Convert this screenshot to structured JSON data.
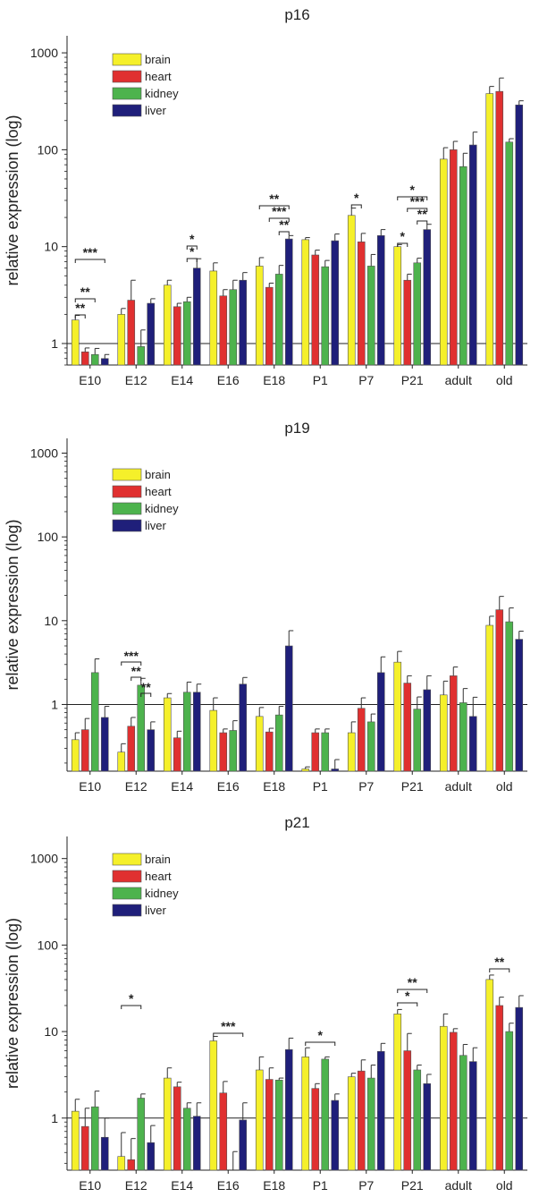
{
  "chart_data": [
    {
      "type": "bar",
      "title": "p16",
      "ylabel": "relative expression (log)",
      "yscale": "log",
      "ylim": [
        0.6,
        1500
      ],
      "yticks": [
        1,
        10,
        100,
        1000
      ],
      "legend_position": "top-left",
      "categories": [
        "E10",
        "E12",
        "E14",
        "E16",
        "E18",
        "P1",
        "P7",
        "P21",
        "adult",
        "old"
      ],
      "series": [
        {
          "name": "brain",
          "color": "#f5f02a",
          "values": [
            1.75,
            2.0,
            4.0,
            5.6,
            6.3,
            11.8,
            21,
            10,
            80,
            380
          ],
          "errors": [
            0.2,
            0.3,
            0.5,
            1.2,
            1.4,
            0.6,
            4,
            0.5,
            25,
            70
          ]
        },
        {
          "name": "heart",
          "color": "#e03030",
          "values": [
            0.82,
            2.8,
            2.4,
            3.1,
            3.8,
            8.2,
            11.2,
            4.5,
            100,
            400
          ],
          "errors": [
            0.08,
            1.7,
            0.2,
            0.5,
            0.4,
            1.0,
            2.5,
            0.7,
            22,
            150
          ]
        },
        {
          "name": "kidney",
          "color": "#4db34d",
          "values": [
            0.77,
            0.93,
            2.7,
            3.6,
            5.2,
            6.2,
            6.3,
            6.8,
            67,
            120
          ],
          "errors": [
            0.12,
            0.45,
            0.3,
            0.9,
            1.2,
            1.0,
            2.0,
            0.8,
            25,
            10
          ]
        },
        {
          "name": "liver",
          "color": "#1f1f7a",
          "values": [
            0.7,
            2.6,
            6.0,
            4.5,
            12,
            11.5,
            13,
            15,
            112,
            290
          ],
          "errors": [
            0.07,
            0.3,
            1.5,
            0.9,
            1.0,
            2.0,
            2.0,
            2.0,
            40,
            30
          ]
        }
      ],
      "annotations": [
        {
          "category": "E10",
          "text": "***"
        },
        {
          "category": "E10",
          "text": "**"
        },
        {
          "category": "E10",
          "text": "**"
        },
        {
          "category": "E14",
          "text": "*"
        },
        {
          "category": "E14",
          "text": "*"
        },
        {
          "category": "E18",
          "text": "**"
        },
        {
          "category": "E18",
          "text": "***"
        },
        {
          "category": "E18",
          "text": "**"
        },
        {
          "category": "P7",
          "text": "*"
        },
        {
          "category": "P21",
          "text": "*"
        },
        {
          "category": "P21",
          "text": "***"
        },
        {
          "category": "P21",
          "text": "**"
        },
        {
          "category": "P21",
          "text": "*"
        }
      ]
    },
    {
      "type": "bar",
      "title": "p19",
      "ylabel": "relative expression (log)",
      "yscale": "log",
      "ylim": [
        0.16,
        1500
      ],
      "yticks": [
        1,
        10,
        100,
        1000
      ],
      "legend_position": "top-left",
      "categories": [
        "E10",
        "E12",
        "E14",
        "E16",
        "E18",
        "P1",
        "P7",
        "P21",
        "adult",
        "old"
      ],
      "series": [
        {
          "name": "brain",
          "color": "#f5f02a",
          "values": [
            0.38,
            0.27,
            1.2,
            0.85,
            0.72,
            0.17,
            0.46,
            3.2,
            1.3,
            8.8
          ],
          "errors": [
            0.08,
            0.07,
            0.15,
            0.35,
            0.2,
            0.01,
            0.16,
            1.1,
            0.6,
            2.5
          ]
        },
        {
          "name": "heart",
          "color": "#e03030",
          "values": [
            0.5,
            0.55,
            0.4,
            0.46,
            0.47,
            0.46,
            0.9,
            1.8,
            2.2,
            13.5
          ],
          "errors": [
            0.18,
            0.15,
            0.08,
            0.05,
            0.05,
            0.05,
            0.3,
            0.4,
            0.6,
            6
          ]
        },
        {
          "name": "kidney",
          "color": "#4db34d",
          "values": [
            2.4,
            1.7,
            1.4,
            0.49,
            0.75,
            0.46,
            0.62,
            0.88,
            1.05,
            9.7
          ],
          "errors": [
            1.1,
            0.35,
            0.45,
            0.15,
            0.2,
            0.05,
            0.15,
            0.35,
            0.5,
            4.5
          ]
        },
        {
          "name": "liver",
          "color": "#1f1f7a",
          "values": [
            0.7,
            0.5,
            1.4,
            1.75,
            5.0,
            0.17,
            2.4,
            1.5,
            0.72,
            6.0
          ],
          "errors": [
            0.25,
            0.12,
            0.35,
            0.35,
            2.6,
            0.05,
            1.3,
            0.7,
            0.5,
            1.5
          ]
        }
      ],
      "annotations": [
        {
          "category": "E12",
          "text": "***"
        },
        {
          "category": "E12",
          "text": "**"
        },
        {
          "category": "E12",
          "text": "**"
        }
      ]
    },
    {
      "type": "bar",
      "title": "p21",
      "ylabel": "relative expression (log)",
      "yscale": "log",
      "ylim": [
        0.25,
        1800
      ],
      "yticks": [
        1,
        10,
        100,
        1000
      ],
      "legend_position": "top-left",
      "categories": [
        "E10",
        "E12",
        "E14",
        "E16",
        "E18",
        "P1",
        "P7",
        "P21",
        "adult",
        "old"
      ],
      "series": [
        {
          "name": "brain",
          "color": "#f5f02a",
          "values": [
            1.2,
            0.36,
            2.9,
            7.8,
            3.6,
            5.1,
            3.0,
            16,
            11.5,
            40
          ],
          "errors": [
            0.45,
            0.32,
            0.9,
            1.0,
            1.5,
            1.4,
            0.3,
            2,
            4.5,
            5
          ]
        },
        {
          "name": "heart",
          "color": "#e03030",
          "values": [
            0.8,
            0.33,
            2.3,
            1.95,
            2.8,
            2.2,
            3.5,
            6.0,
            9.8,
            20
          ],
          "errors": [
            0.5,
            0.25,
            0.3,
            0.7,
            1.0,
            0.3,
            1.2,
            3.5,
            1.0,
            5
          ]
        },
        {
          "name": "kidney",
          "color": "#4db34d",
          "values": [
            1.35,
            1.7,
            1.3,
            0.25,
            2.75,
            4.8,
            2.9,
            3.6,
            5.3,
            10
          ],
          "errors": [
            0.7,
            0.2,
            0.2,
            0.16,
            0.15,
            0.3,
            1.2,
            0.5,
            1.8,
            2.5
          ]
        },
        {
          "name": "liver",
          "color": "#1f1f7a",
          "values": [
            0.6,
            0.52,
            1.05,
            0.95,
            6.2,
            1.6,
            5.9,
            2.5,
            4.5,
            19
          ],
          "errors": [
            0.4,
            0.3,
            0.45,
            0.55,
            2.2,
            0.3,
            1.4,
            0.7,
            2.0,
            7
          ]
        }
      ],
      "annotations": [
        {
          "category": "E12",
          "text": "*"
        },
        {
          "category": "E16",
          "text": "***"
        },
        {
          "category": "P1",
          "text": "*"
        },
        {
          "category": "P21",
          "text": "**"
        },
        {
          "category": "P21",
          "text": "*"
        },
        {
          "category": "old",
          "text": "**"
        }
      ]
    }
  ]
}
